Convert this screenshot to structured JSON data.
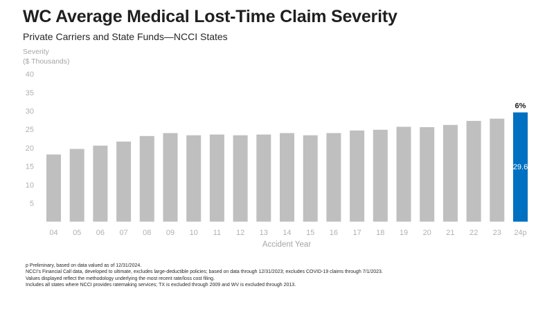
{
  "header": {
    "title": "WC Average Medical Lost-Time Claim Severity",
    "subtitle": "Private Carriers and State Funds—NCCI States"
  },
  "chart_data": {
    "type": "bar",
    "title": "WC Average Medical Lost-Time Claim Severity",
    "subtitle": "Private Carriers and State Funds—NCCI States",
    "ylabel_line1": "Severity",
    "ylabel_line2": "($ Thousands)",
    "xlabel": "Accident Year",
    "ylim": [
      0,
      40
    ],
    "yticks": [
      5,
      10,
      15,
      20,
      25,
      30,
      35,
      40
    ],
    "grid": false,
    "categories": [
      "04",
      "05",
      "06",
      "07",
      "08",
      "09",
      "10",
      "11",
      "12",
      "13",
      "14",
      "15",
      "16",
      "17",
      "18",
      "19",
      "20",
      "21",
      "22",
      "23",
      "24p"
    ],
    "values": [
      18.2,
      19.7,
      20.6,
      21.7,
      23.2,
      24.0,
      23.4,
      23.6,
      23.4,
      23.6,
      24.0,
      23.4,
      24.0,
      24.7,
      24.9,
      25.7,
      25.6,
      26.2,
      27.3,
      27.9,
      29.6
    ],
    "bar_color": "#bfbfbf",
    "highlight_index": 20,
    "highlight_color": "#0070c0",
    "highlight_value_label": "29.6",
    "highlight_change_label": "6%"
  },
  "footnotes": [
    "p Preliminary, based on data valued as of 12/31/2024.",
    "NCCI’s Financial Call data, developed to ultimate, excludes large-deductible policies; based on data through 12/31/2023; excludes COVID-19 claims through 7/1/2023.",
    "Values displayed reflect the methodology underlying the most recent rate/loss cost filing.",
    "Includes all states where NCCI provides ratemaking services; TX is excluded through 2009 and WV is excluded through 2013."
  ]
}
